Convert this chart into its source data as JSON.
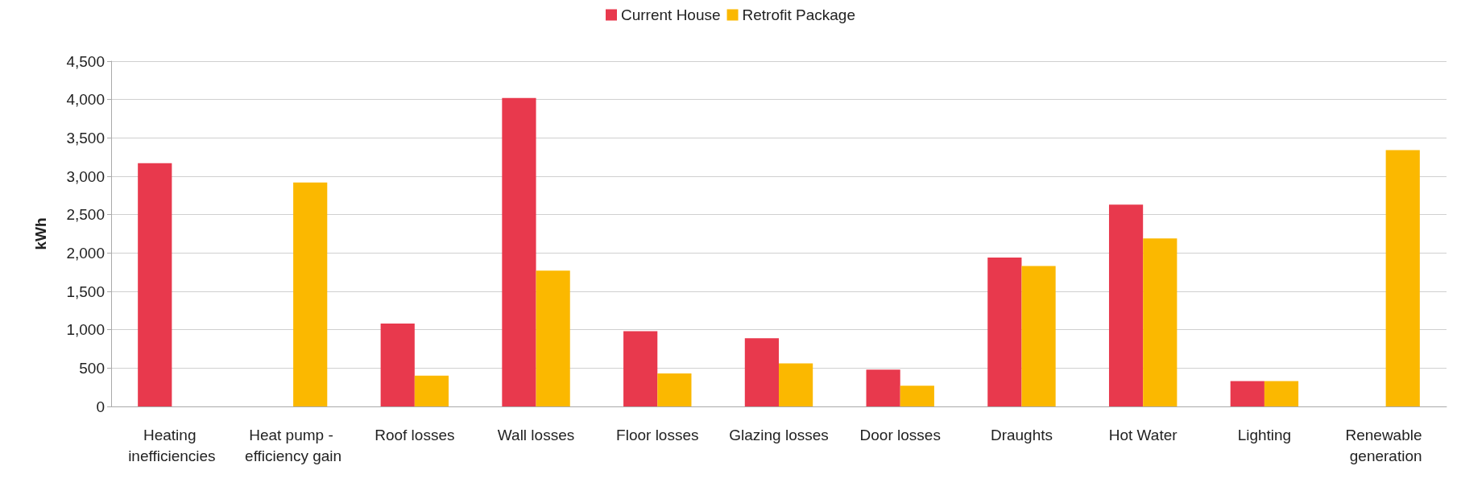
{
  "chart_data": {
    "type": "bar",
    "ylabel": "kWh",
    "categories": [
      "Heating inefficiencies",
      "Heat pump - efficiency gain",
      "Roof losses",
      "Wall losses",
      "Floor losses",
      "Glazing losses",
      "Door losses",
      "Draughts",
      "Hot Water",
      "Lighting",
      "Renewable generation"
    ],
    "series": [
      {
        "name": "Current House",
        "color": "#e8394d",
        "values": [
          3170,
          null,
          1080,
          4020,
          980,
          890,
          480,
          1940,
          2630,
          330,
          null
        ]
      },
      {
        "name": "Retrofit Package",
        "color": "#fbb800",
        "values": [
          null,
          2920,
          400,
          1770,
          430,
          560,
          270,
          1830,
          2190,
          330,
          3340
        ]
      }
    ],
    "ylim": [
      0,
      4500
    ],
    "yticks": [
      {
        "value": 0,
        "label": "0"
      },
      {
        "value": 500,
        "label": "500"
      },
      {
        "value": 1000,
        "label": "1,000"
      },
      {
        "value": 1500,
        "label": "1,500"
      },
      {
        "value": 2000,
        "label": "2,000"
      },
      {
        "value": 2500,
        "label": "2,500"
      },
      {
        "value": 3000,
        "label": "3,000"
      },
      {
        "value": 3500,
        "label": "3,500"
      },
      {
        "value": 4000,
        "label": "4,000"
      },
      {
        "value": 4500,
        "label": "4,500"
      }
    ],
    "grid": "y",
    "legend": "top"
  }
}
